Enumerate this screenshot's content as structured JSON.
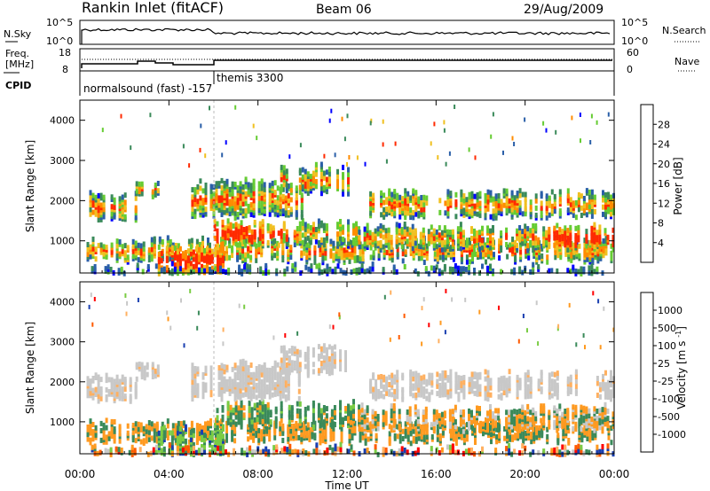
{
  "header": {
    "station": "Rankin Inlet (fitACF)",
    "beam": "Beam 06",
    "date": "29/Aug/2009"
  },
  "nsky_panel": {
    "left_label": "N.Sky",
    "right_label": "N.Search",
    "left_ticks": [
      "10^5",
      "10^0"
    ],
    "right_ticks": [
      "10^5",
      "10^0"
    ]
  },
  "freq_panel": {
    "left_label_1": "Freq.",
    "left_label_2": "[MHz]",
    "right_label": "Nave",
    "left_ticks": [
      "18",
      "8"
    ],
    "right_ticks": [
      "60",
      "0"
    ],
    "cpid_label": "CPID",
    "cpid_1": "normalsound (fast) -157",
    "cpid_2": "themis 3300"
  },
  "chart_data": [
    {
      "type": "heatmap",
      "panel": "power",
      "ylabel": "Slant Range [km]",
      "ylim": [
        200,
        4500
      ],
      "xlim": [
        0,
        24
      ],
      "yticks": [
        "1000",
        "2000",
        "3000",
        "4000"
      ],
      "colorbar_label": "Power [dB]",
      "colorbar_ticks": [
        "28",
        "24",
        "20",
        "16",
        "12",
        "8",
        "4"
      ],
      "colors": [
        "#0000ff",
        "#2a5fa8",
        "#3a8a5a",
        "#66cc33",
        "#f0c020",
        "#ff8c00",
        "#ff2a00"
      ]
    },
    {
      "type": "heatmap",
      "panel": "velocity",
      "ylabel": "Slant Range [km]",
      "ylim": [
        200,
        4500
      ],
      "xlim": [
        0,
        24
      ],
      "yticks": [
        "1000",
        "2000",
        "3000",
        "4000"
      ],
      "colorbar_label": "Velocity [m s^-1]",
      "colorbar_ticks": [
        "1000",
        "500",
        "100",
        "25",
        "-25",
        "-100",
        "-500",
        "-1000"
      ],
      "colors": [
        "#ff0000",
        "#ff5a00",
        "#ff9a20",
        "#ffb060",
        "#c8c8c8",
        "#7acc44",
        "#3a8a5a",
        "#1a3fb0"
      ]
    }
  ],
  "time_axis": {
    "label": "Time UT",
    "ticks": [
      "00:00",
      "04:00",
      "08:00",
      "12:00",
      "16:00",
      "20:00",
      "00:00"
    ]
  }
}
